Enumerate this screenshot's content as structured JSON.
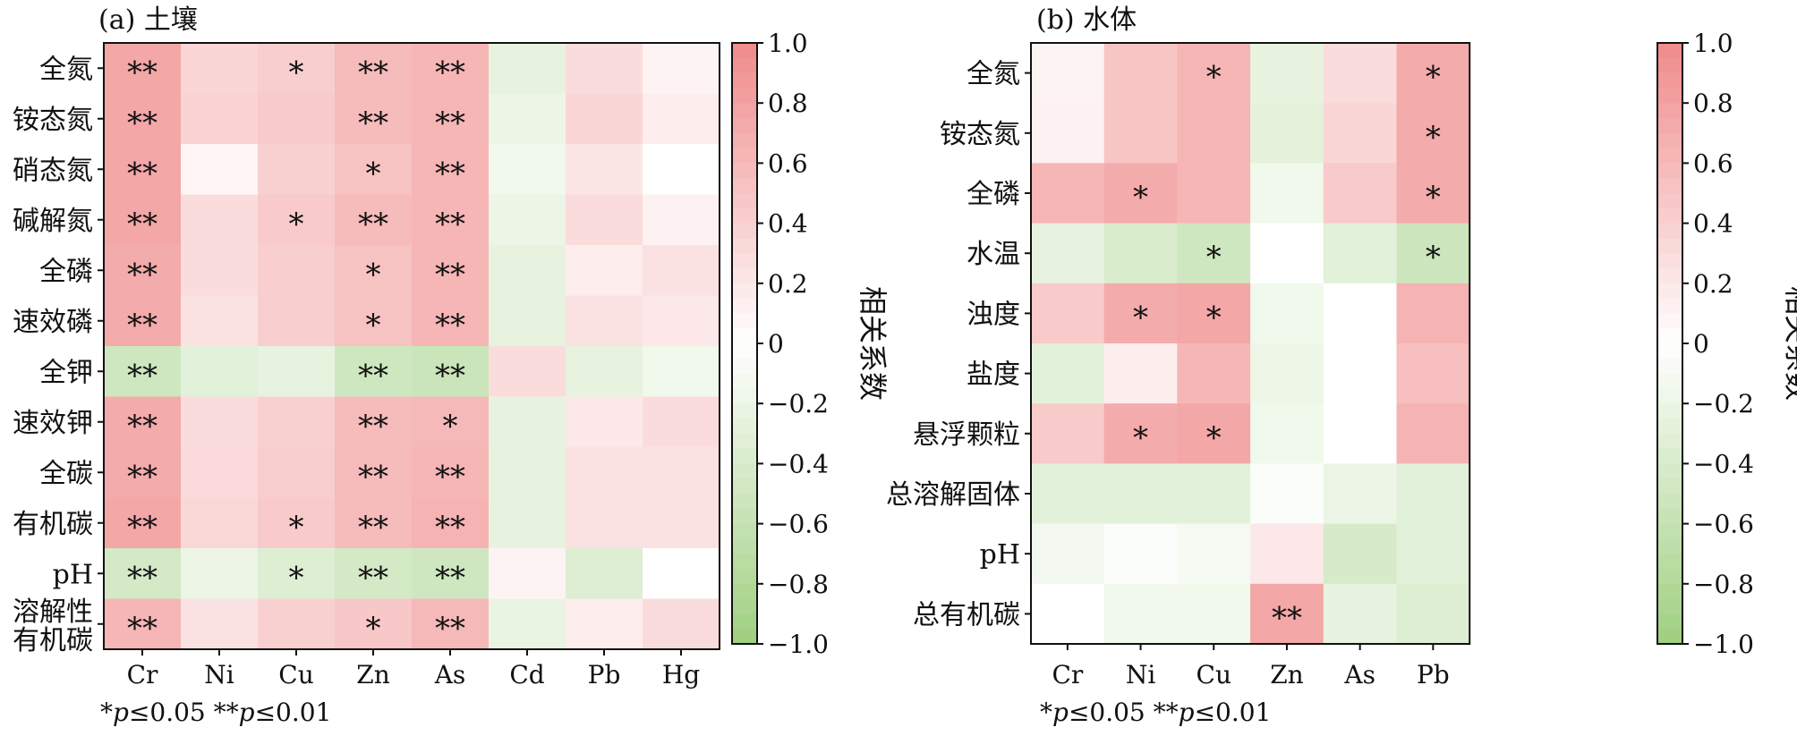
{
  "chart_data": [
    {
      "type": "heatmap",
      "title": "(a) 土壤",
      "columns": [
        "Cr",
        "Ni",
        "Cu",
        "Zn",
        "As",
        "Cd",
        "Pb",
        "Hg"
      ],
      "rows": [
        "全氮",
        "铵态氮",
        "硝态氮",
        "碱解氮",
        "全磷",
        "速效磷",
        "全钾",
        "速效钾",
        "全碳",
        "有机碳",
        "pH",
        "溶解性\n有机碳"
      ],
      "values": [
        [
          0.75,
          0.35,
          0.42,
          0.58,
          0.62,
          -0.25,
          0.3,
          0.1
        ],
        [
          0.75,
          0.38,
          0.45,
          0.58,
          0.62,
          -0.2,
          0.35,
          0.15
        ],
        [
          0.75,
          0.08,
          0.4,
          0.52,
          0.62,
          -0.15,
          0.22,
          0.0
        ],
        [
          0.75,
          0.3,
          0.45,
          0.58,
          0.62,
          -0.2,
          0.3,
          0.12
        ],
        [
          0.72,
          0.3,
          0.42,
          0.52,
          0.62,
          -0.25,
          0.15,
          0.25
        ],
        [
          0.72,
          0.25,
          0.42,
          0.52,
          0.62,
          -0.25,
          0.25,
          0.2
        ],
        [
          -0.5,
          -0.3,
          -0.25,
          -0.5,
          -0.55,
          0.3,
          -0.25,
          -0.15
        ],
        [
          0.72,
          0.3,
          0.4,
          0.58,
          0.6,
          -0.25,
          0.2,
          0.3
        ],
        [
          0.72,
          0.32,
          0.42,
          0.58,
          0.62,
          -0.25,
          0.25,
          0.25
        ],
        [
          0.75,
          0.33,
          0.45,
          0.58,
          0.65,
          -0.25,
          0.25,
          0.25
        ],
        [
          -0.45,
          -0.2,
          -0.35,
          -0.45,
          -0.5,
          0.1,
          -0.35,
          0.0
        ],
        [
          0.62,
          0.25,
          0.4,
          0.48,
          0.6,
          -0.22,
          0.15,
          0.3
        ]
      ],
      "significance": [
        [
          "**",
          "",
          "*",
          "**",
          "**",
          "",
          "",
          ""
        ],
        [
          "**",
          "",
          "",
          "**",
          "**",
          "",
          "",
          ""
        ],
        [
          "**",
          "",
          "",
          "*",
          "**",
          "",
          "",
          ""
        ],
        [
          "**",
          "",
          "*",
          "**",
          "**",
          "",
          "",
          ""
        ],
        [
          "**",
          "",
          "",
          "*",
          "**",
          "",
          "",
          ""
        ],
        [
          "**",
          "",
          "",
          "*",
          "**",
          "",
          "",
          ""
        ],
        [
          "**",
          "",
          "",
          "**",
          "**",
          "",
          "",
          ""
        ],
        [
          "**",
          "",
          "",
          "**",
          "*",
          "",
          "",
          ""
        ],
        [
          "**",
          "",
          "",
          "**",
          "**",
          "",
          "",
          ""
        ],
        [
          "**",
          "",
          "*",
          "**",
          "**",
          "",
          "",
          ""
        ],
        [
          "**",
          "",
          "*",
          "**",
          "**",
          "",
          "",
          ""
        ],
        [
          "**",
          "",
          "",
          "*",
          "**",
          "",
          "",
          ""
        ]
      ],
      "colorbar": {
        "label": "相关系数",
        "range": [
          -1.0,
          1.0
        ],
        "ticks": [
          "1.0",
          "0.8",
          "0.6",
          "0.4",
          "0.2",
          "0",
          "−0.2",
          "−0.4",
          "−0.6",
          "−0.8",
          "−1.0"
        ]
      },
      "footnote_a": "p≤0.05",
      "footnote_b": "p≤0.01",
      "colors": {
        "high": "#f08a8a",
        "mid": "#ffffff",
        "low": "#9fcf80"
      }
    },
    {
      "type": "heatmap",
      "title": "(b) 水体",
      "columns": [
        "Cr",
        "Ni",
        "Cu",
        "Zn",
        "As",
        "Pb"
      ],
      "rows": [
        "全氮",
        "铵态氮",
        "全磷",
        "水温",
        "浊度",
        "盐度",
        "悬浮颗粒",
        "总溶解固体",
        "pH",
        "总有机碳"
      ],
      "values": [
        [
          0.1,
          0.5,
          0.62,
          -0.25,
          0.3,
          0.72
        ],
        [
          0.12,
          0.5,
          0.62,
          -0.28,
          0.35,
          0.72
        ],
        [
          0.62,
          0.72,
          0.62,
          -0.15,
          0.45,
          0.72
        ],
        [
          -0.25,
          -0.4,
          -0.5,
          0.0,
          -0.3,
          -0.52
        ],
        [
          0.45,
          0.72,
          0.75,
          -0.15,
          0.0,
          0.65
        ],
        [
          -0.3,
          0.15,
          0.62,
          -0.18,
          0.0,
          0.55
        ],
        [
          0.45,
          0.72,
          0.75,
          -0.15,
          0.0,
          0.65
        ],
        [
          -0.3,
          -0.3,
          -0.3,
          -0.05,
          -0.2,
          -0.3
        ],
        [
          -0.12,
          -0.05,
          -0.1,
          0.2,
          -0.42,
          -0.3
        ],
        [
          0.0,
          -0.15,
          -0.15,
          0.75,
          -0.25,
          -0.35
        ]
      ],
      "significance": [
        [
          "",
          "",
          "*",
          "",
          "",
          "*"
        ],
        [
          "",
          "",
          "",
          "",
          "",
          "*"
        ],
        [
          "",
          "*",
          "",
          "",
          "",
          "*"
        ],
        [
          "",
          "",
          "*",
          "",
          "",
          "*"
        ],
        [
          "",
          "*",
          "*",
          "",
          "",
          ""
        ],
        [
          "",
          "",
          "",
          "",
          "",
          ""
        ],
        [
          "",
          "*",
          "*",
          "",
          "",
          ""
        ],
        [
          "",
          "",
          "",
          "",
          "",
          ""
        ],
        [
          "",
          "",
          "",
          "",
          "",
          ""
        ],
        [
          "",
          "",
          "",
          "**",
          "",
          ""
        ]
      ],
      "colorbar": {
        "label": "相关系数",
        "range": [
          -1.0,
          1.0
        ],
        "ticks": [
          "1.0",
          "0.8",
          "0.6",
          "0.4",
          "0.2",
          "0",
          "−0.2",
          "−0.4",
          "−0.6",
          "−0.8",
          "−1.0"
        ]
      },
      "footnote_a": "p≤0.05",
      "footnote_b": "p≤0.01",
      "colors": {
        "high": "#f08a8a",
        "mid": "#ffffff",
        "low": "#9fcf80"
      }
    }
  ]
}
